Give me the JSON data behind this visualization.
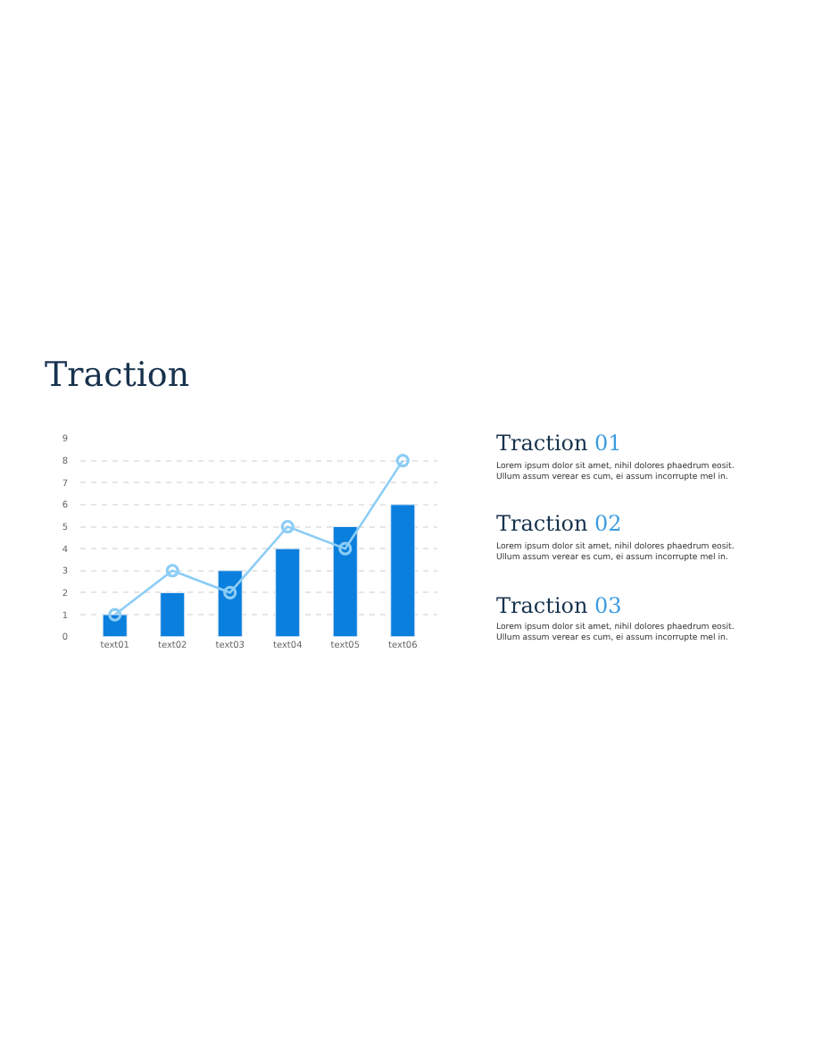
{
  "chart_data": {
    "type": "bar",
    "title": "Traction",
    "categories": [
      "text01",
      "text02",
      "text03",
      "text04",
      "text05",
      "text06"
    ],
    "series": [
      {
        "color": "#0a7fdd",
        "values": [
          1,
          2,
          3,
          4,
          5,
          6
        ]
      },
      {
        "type": "line",
        "color": "#8ccdf5",
        "values": [
          1,
          3,
          2,
          5,
          4,
          8
        ],
        "marker": "circle",
        "line_style": "solid"
      }
    ],
    "ylim": [
      0,
      9
    ],
    "yticks": [
      0,
      1,
      2,
      3,
      4,
      5,
      6,
      7,
      8,
      9
    ],
    "grid": "y",
    "annotations": [
      "Traction 01",
      "Lorem ipsum dolor sit amet, nihil dolores phaedrum eosit.\nUllum assum verear es cum, ei assum incorrupte mel in.",
      "Traction 02",
      "Lorem ipsum dolor sit amet, nihil dolores phaedrum eosit.\nUllum assum verear es cum, ei assum incorrupte mel in.",
      "Traction 03",
      "Lorem ipsum dolor sit amet, nihil dolores phaedrum eosit.\nUllum assum verear es cum, ei assum incorrupte mel in."
    ]
  }
}
